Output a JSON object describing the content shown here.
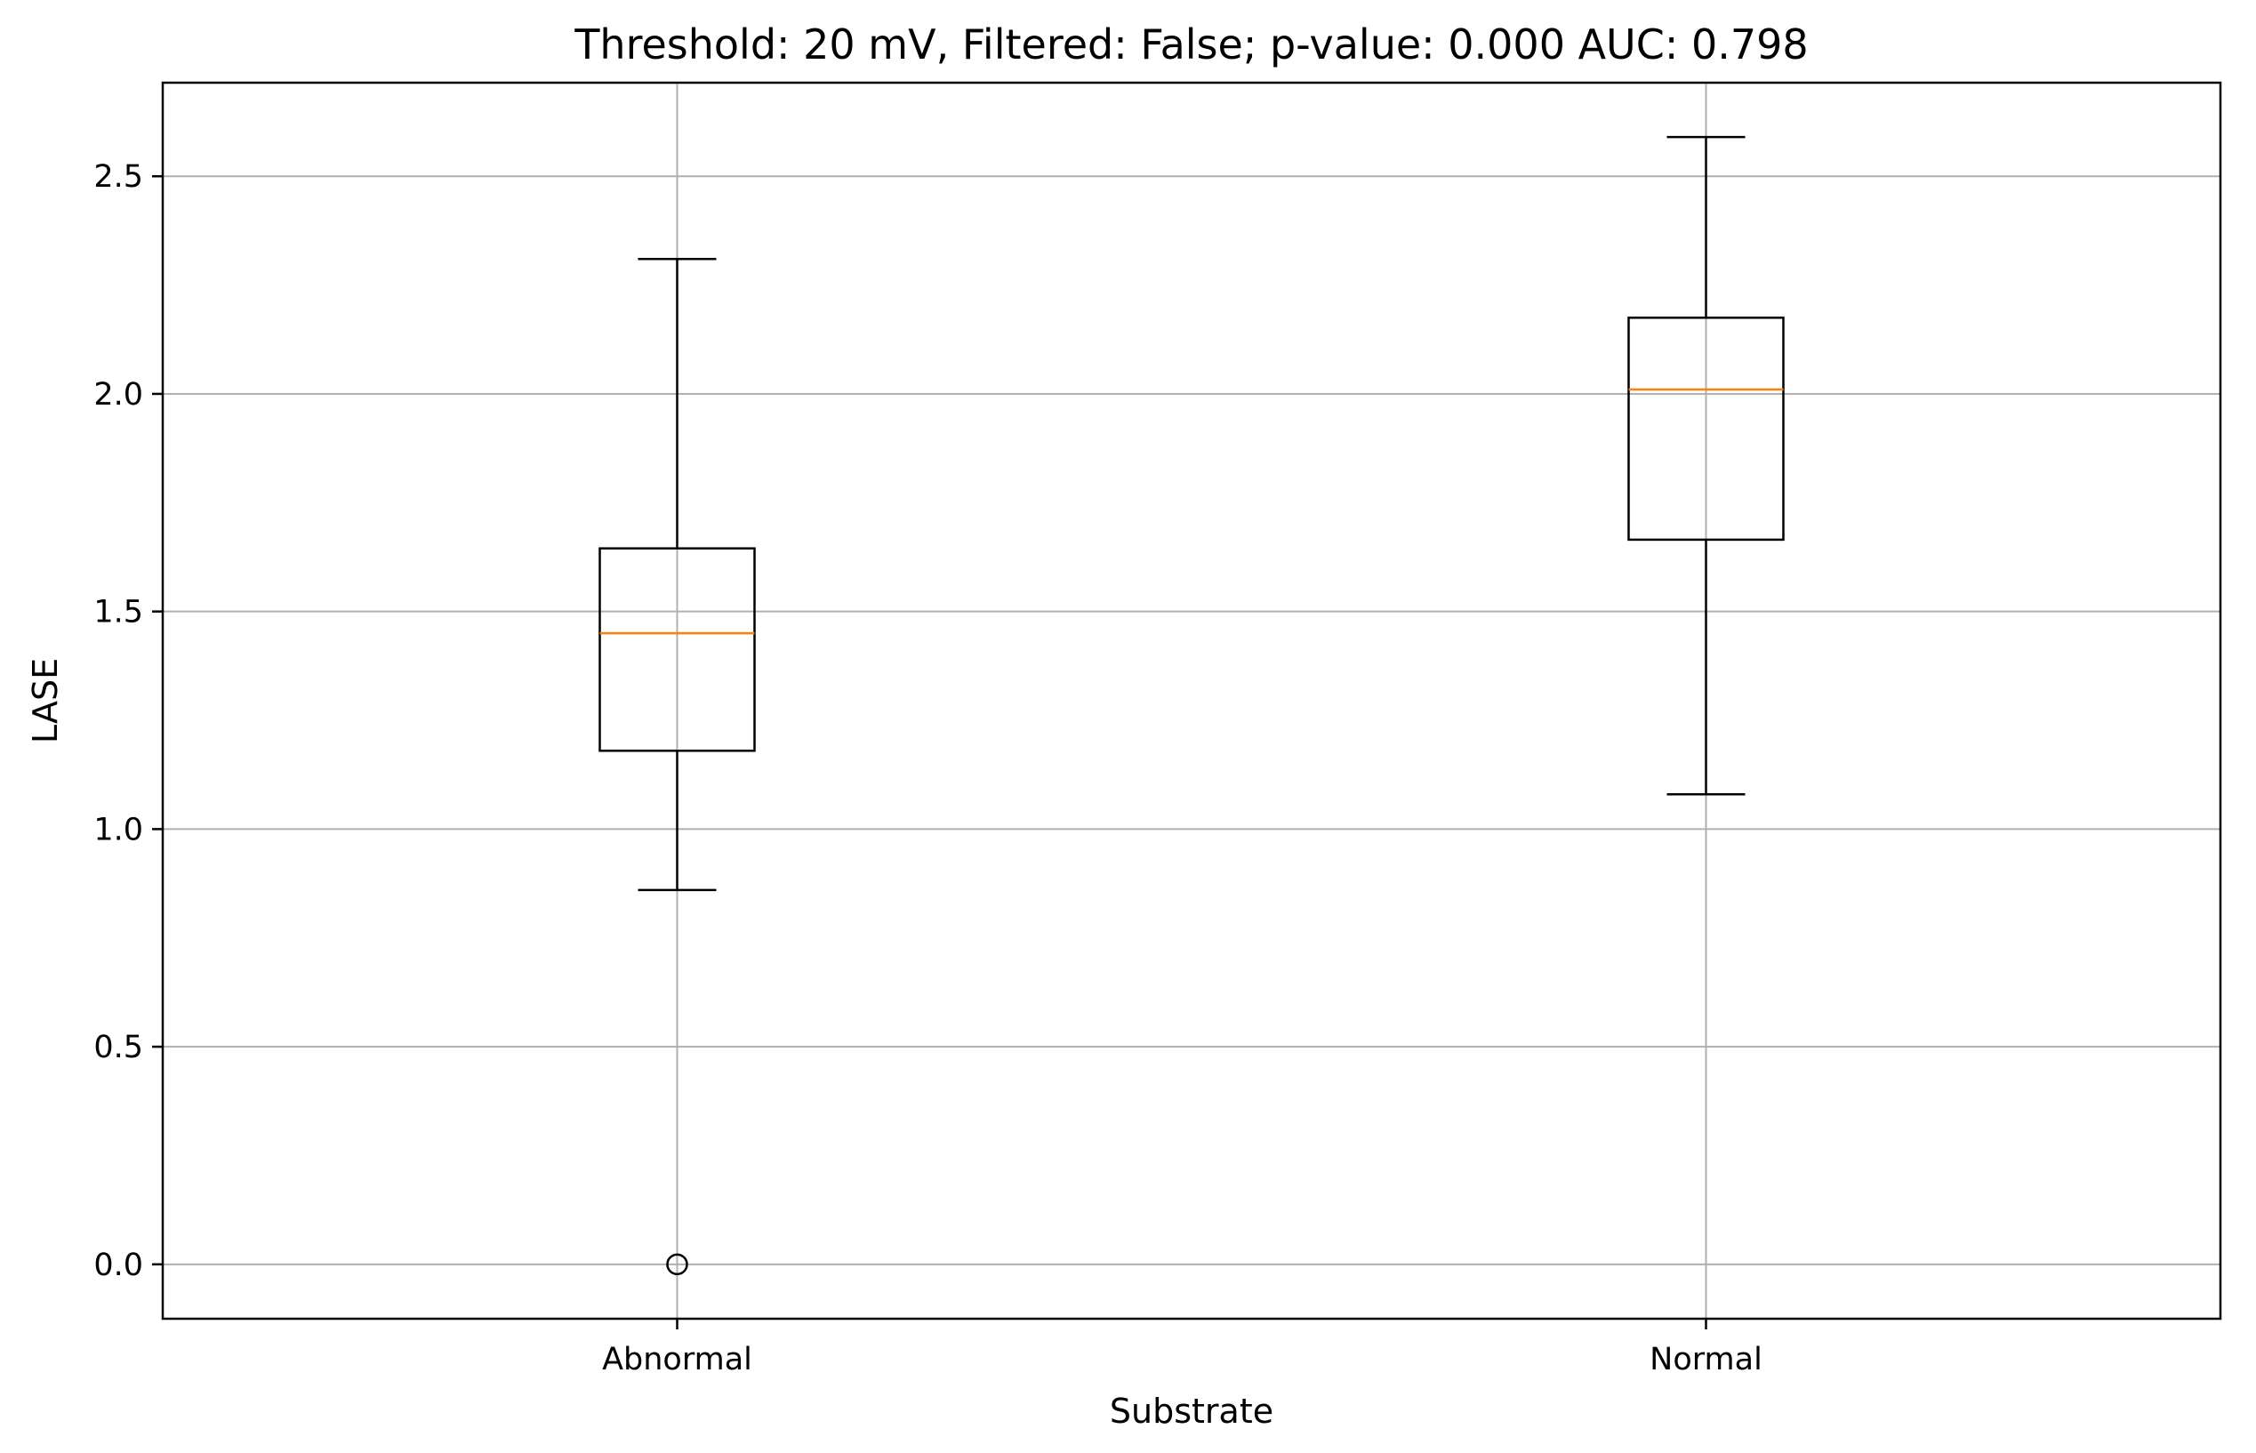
{
  "chart_data": {
    "type": "box",
    "title": "Threshold: 20 mV, Filtered: False; p-value: 0.000 AUC: 0.798",
    "xlabel": "Substrate",
    "ylabel": "LASE",
    "ylim": [
      -0.125,
      2.715
    ],
    "grid": true,
    "categories": [
      "Abnormal",
      "Normal"
    ],
    "y_ticks": [
      0.0,
      0.5,
      1.0,
      1.5,
      2.0,
      2.5
    ],
    "y_tick_labels": [
      "0.0",
      "0.5",
      "1.0",
      "1.5",
      "2.0",
      "2.5"
    ],
    "boxes": [
      {
        "category": "Abnormal",
        "whisker_low": 0.86,
        "q1": 1.18,
        "median": 1.45,
        "q3": 1.645,
        "whisker_high": 2.31,
        "outliers": [
          0.0
        ]
      },
      {
        "category": "Normal",
        "whisker_low": 1.08,
        "q1": 1.665,
        "median": 2.01,
        "q3": 2.175,
        "whisker_high": 2.59,
        "outliers": []
      }
    ],
    "colors": {
      "box": "#000000",
      "median": "#ff7f0e",
      "grid": "#b0b0b0",
      "frame": "#000000"
    }
  }
}
